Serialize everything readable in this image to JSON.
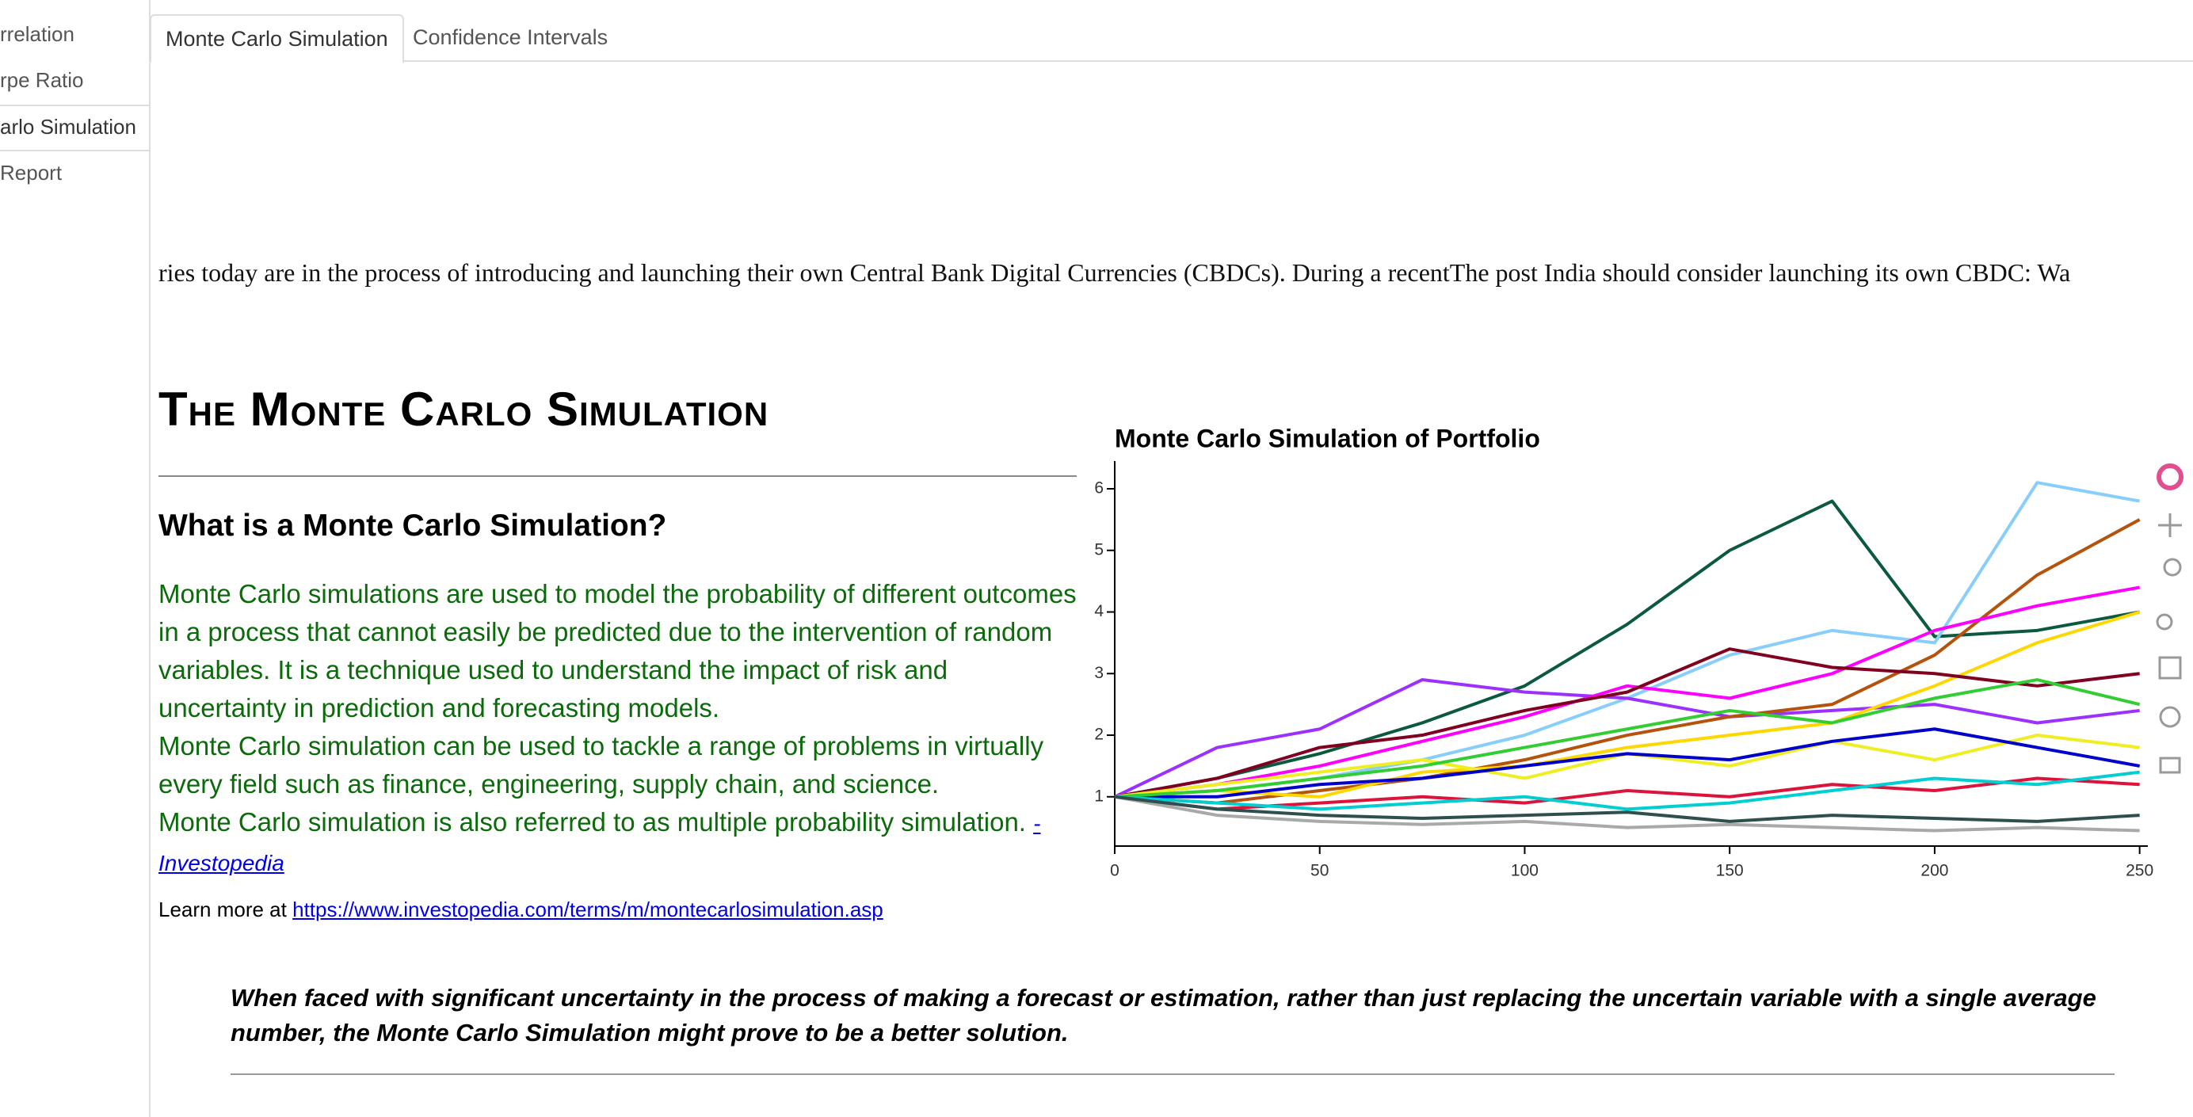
{
  "sidebar": {
    "items": [
      "rrelation",
      "rpe Ratio",
      "arlo Simulation",
      "Report"
    ]
  },
  "tabs": [
    "Monte Carlo Simulation",
    "Confidence Intervals"
  ],
  "ticker": "ries today are in the process of introducing and launching their own Central Bank Digital Currencies (CBDCs). During a recentThe post India should consider launching its own CBDC: Wa",
  "heading": "The Monte Carlo Simulation",
  "subheading": "What is a Monte Carlo Simulation?",
  "paragraphs": [
    "Monte Carlo simulations are used to model the probability of different outcomes in a process that cannot easily be predicted due to the intervention of random variables. It is a technique used to understand the impact of risk and uncertainty in prediction and forecasting models.",
    "Monte Carlo simulation can be used to tackle a range of problems in virtually every field such as finance, engineering, supply chain, and science.",
    "Monte Carlo simulation is also referred to as multiple probability simulation."
  ],
  "source_link": "- Investopedia",
  "learn_more": {
    "prefix": "Learn more at",
    "url": "https://www.investopedia.com/terms/m/montecarlosimulation.asp"
  },
  "quote": "When faced with significant uncertainty in the process of making a forecast or estimation, rather than just replacing the uncertain variable with a single average number, the Monte Carlo Simulation might prove to be a better solution.",
  "chart_data": {
    "type": "line",
    "title": "Monte Carlo Simulation of Portfolio",
    "x": [
      0,
      25,
      50,
      75,
      100,
      125,
      150,
      175,
      200,
      225,
      250
    ],
    "xlim": [
      0,
      252
    ],
    "xticks": [
      0,
      50,
      100,
      150,
      200,
      250
    ],
    "ylim": [
      0.2,
      6.45
    ],
    "yticks": [
      1,
      2,
      3,
      4,
      5,
      6
    ],
    "series": [
      {
        "color": "#0b5a3f",
        "values": [
          1,
          1.3,
          1.7,
          2.2,
          2.8,
          3.8,
          5.0,
          5.8,
          3.6,
          3.7,
          4.0
        ]
      },
      {
        "color": "#87cefa",
        "values": [
          1,
          1.1,
          1.3,
          1.6,
          2.0,
          2.6,
          3.3,
          3.7,
          3.5,
          6.1,
          5.8
        ]
      },
      {
        "color": "#9b30ff",
        "values": [
          1,
          1.8,
          2.1,
          2.9,
          2.7,
          2.6,
          2.3,
          2.4,
          2.5,
          2.2,
          2.4
        ]
      },
      {
        "color": "#b5520b",
        "values": [
          1,
          0.9,
          1.1,
          1.3,
          1.6,
          2.0,
          2.3,
          2.5,
          3.3,
          4.6,
          5.5
        ]
      },
      {
        "color": "#ff00ff",
        "values": [
          1,
          1.2,
          1.5,
          1.9,
          2.3,
          2.8,
          2.6,
          3.0,
          3.7,
          4.1,
          4.4
        ]
      },
      {
        "color": "#ffd700",
        "values": [
          1,
          1.1,
          1.0,
          1.4,
          1.5,
          1.8,
          2.0,
          2.2,
          2.8,
          3.5,
          4.0
        ]
      },
      {
        "color": "#800020",
        "values": [
          1,
          1.3,
          1.8,
          2.0,
          2.4,
          2.7,
          3.4,
          3.1,
          3.0,
          2.8,
          3.0
        ]
      },
      {
        "color": "#eeee22",
        "values": [
          1,
          1.2,
          1.4,
          1.6,
          1.3,
          1.7,
          1.5,
          1.9,
          1.6,
          2.0,
          1.8
        ]
      },
      {
        "color": "#0000cd",
        "values": [
          1,
          1.0,
          1.2,
          1.3,
          1.5,
          1.7,
          1.6,
          1.9,
          2.1,
          1.8,
          1.5
        ]
      },
      {
        "color": "#32cd32",
        "values": [
          1,
          1.1,
          1.3,
          1.5,
          1.8,
          2.1,
          2.4,
          2.2,
          2.6,
          2.9,
          2.5
        ]
      },
      {
        "color": "#dc143c",
        "values": [
          1,
          0.8,
          0.9,
          1.0,
          0.9,
          1.1,
          1.0,
          1.2,
          1.1,
          1.3,
          1.2
        ]
      },
      {
        "color": "#a9a9a9",
        "values": [
          1,
          0.7,
          0.6,
          0.55,
          0.6,
          0.5,
          0.55,
          0.5,
          0.45,
          0.5,
          0.45
        ]
      },
      {
        "color": "#00ced1",
        "values": [
          1,
          0.9,
          0.8,
          0.9,
          1.0,
          0.8,
          0.9,
          1.1,
          1.3,
          1.2,
          1.4
        ]
      },
      {
        "color": "#2f4f4f",
        "values": [
          1,
          0.8,
          0.7,
          0.65,
          0.7,
          0.75,
          0.6,
          0.7,
          0.65,
          0.6,
          0.7
        ]
      }
    ]
  }
}
